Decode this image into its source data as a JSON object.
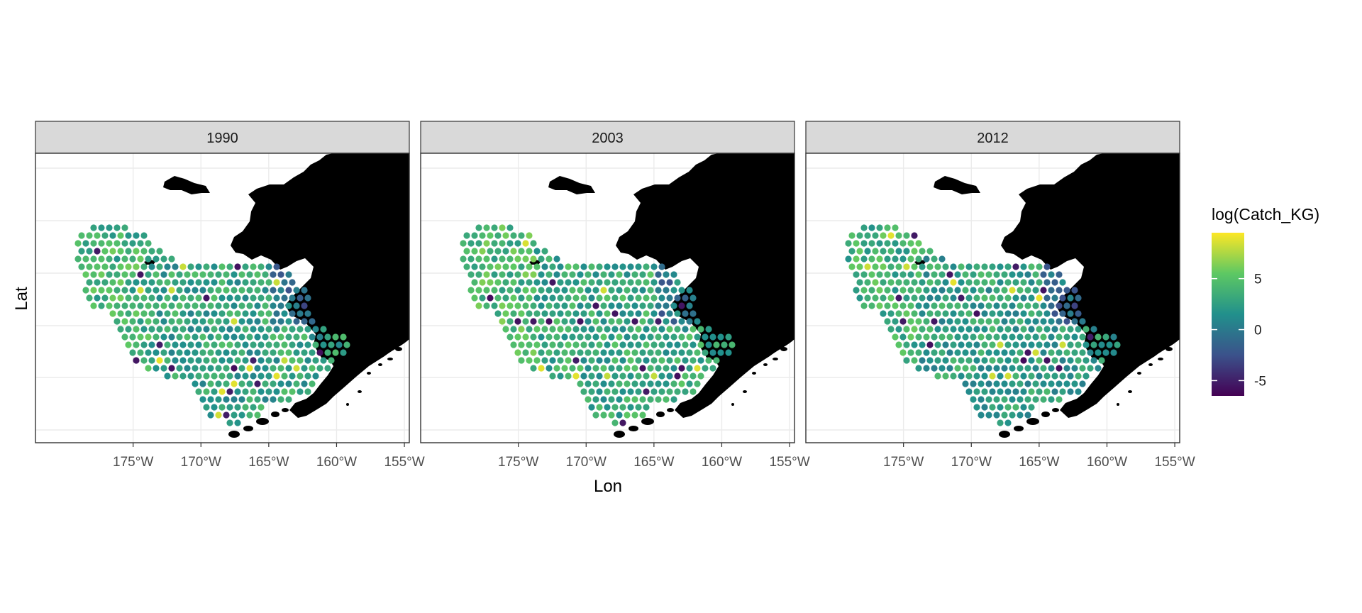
{
  "figure": {
    "x_axis_title": "Lon",
    "y_axis_title": "Lat",
    "x_tick_labels": [
      "175°W",
      "170°W",
      "165°W",
      "160°W",
      "155°W"
    ],
    "x_tick_values": [
      -175,
      -170,
      -165,
      -160,
      -155
    ]
  },
  "panels": [
    {
      "strip_label": "1990",
      "seed": 11,
      "bias": 0.2
    },
    {
      "strip_label": "2003",
      "seed": 23,
      "bias": 0.7
    },
    {
      "strip_label": "2012",
      "seed": 37,
      "bias": 0.0
    }
  ],
  "legend": {
    "title": "log(Catch_KG)",
    "tick_labels": [
      "5",
      "0",
      "-5"
    ],
    "tick_values": [
      5,
      0,
      -5
    ],
    "min": -6.5,
    "max": 9.5
  },
  "colors": {
    "land": "#000000",
    "strip_fill": "#d9d9d9",
    "panel_border": "#333333",
    "grid": "#ebebeb",
    "scale": [
      "#440154",
      "#3b528b",
      "#21908c",
      "#5dc863",
      "#fde725"
    ]
  }
}
